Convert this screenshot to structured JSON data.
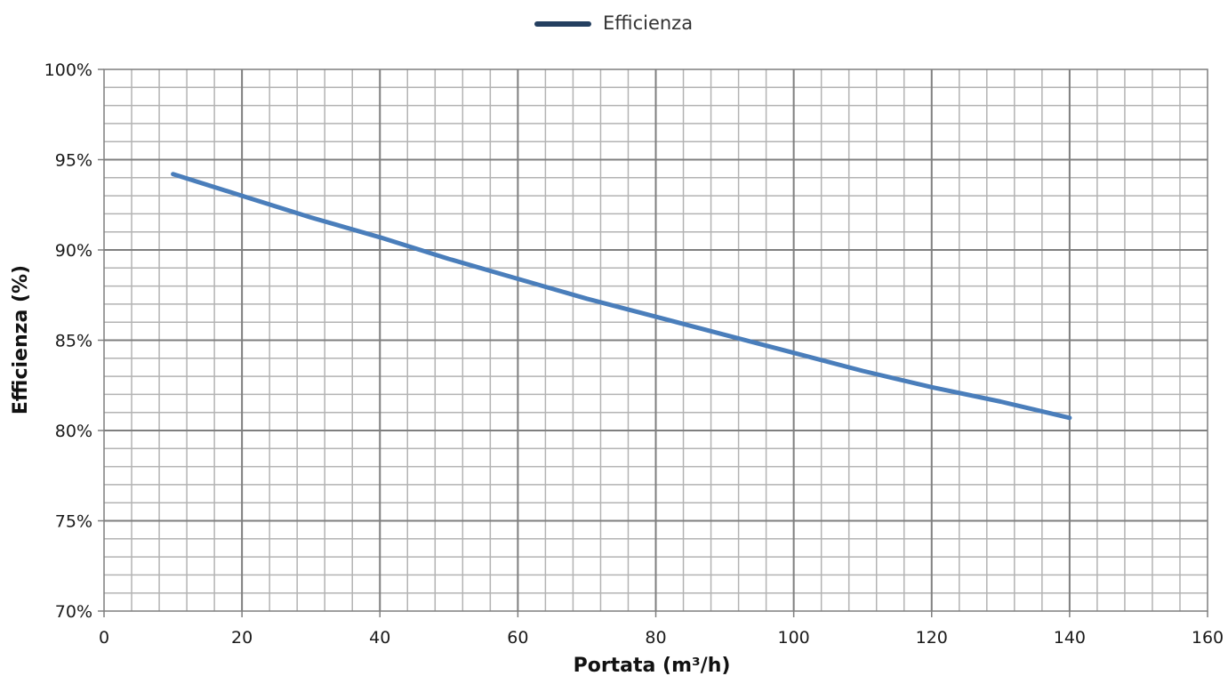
{
  "chart_data": {
    "type": "line",
    "title": "",
    "xlabel": "Portata (m³/h)",
    "ylabel": "Efficienza (%)",
    "xlim": [
      0,
      160
    ],
    "ylim": [
      70,
      100
    ],
    "x_ticks": [
      0,
      20,
      40,
      60,
      80,
      100,
      120,
      140,
      160
    ],
    "y_ticks": [
      70,
      75,
      80,
      85,
      90,
      95,
      100
    ],
    "x_tick_labels": [
      "0",
      "20",
      "40",
      "60",
      "80",
      "100",
      "120",
      "140",
      "160"
    ],
    "y_tick_labels": [
      "70%",
      "75%",
      "80%",
      "85%",
      "90%",
      "95%",
      "100%"
    ],
    "grid": true,
    "legend_position": "top-center",
    "series": [
      {
        "name": "Efficienza",
        "color": "#4a7ebb",
        "legend_color": "#243f60",
        "x": [
          10,
          20,
          30,
          40,
          50,
          60,
          70,
          80,
          90,
          100,
          110,
          120,
          130,
          140
        ],
        "y": [
          94.2,
          93.0,
          91.8,
          90.7,
          89.5,
          88.4,
          87.3,
          86.3,
          85.3,
          84.3,
          83.3,
          82.4,
          81.6,
          80.7
        ]
      }
    ]
  }
}
